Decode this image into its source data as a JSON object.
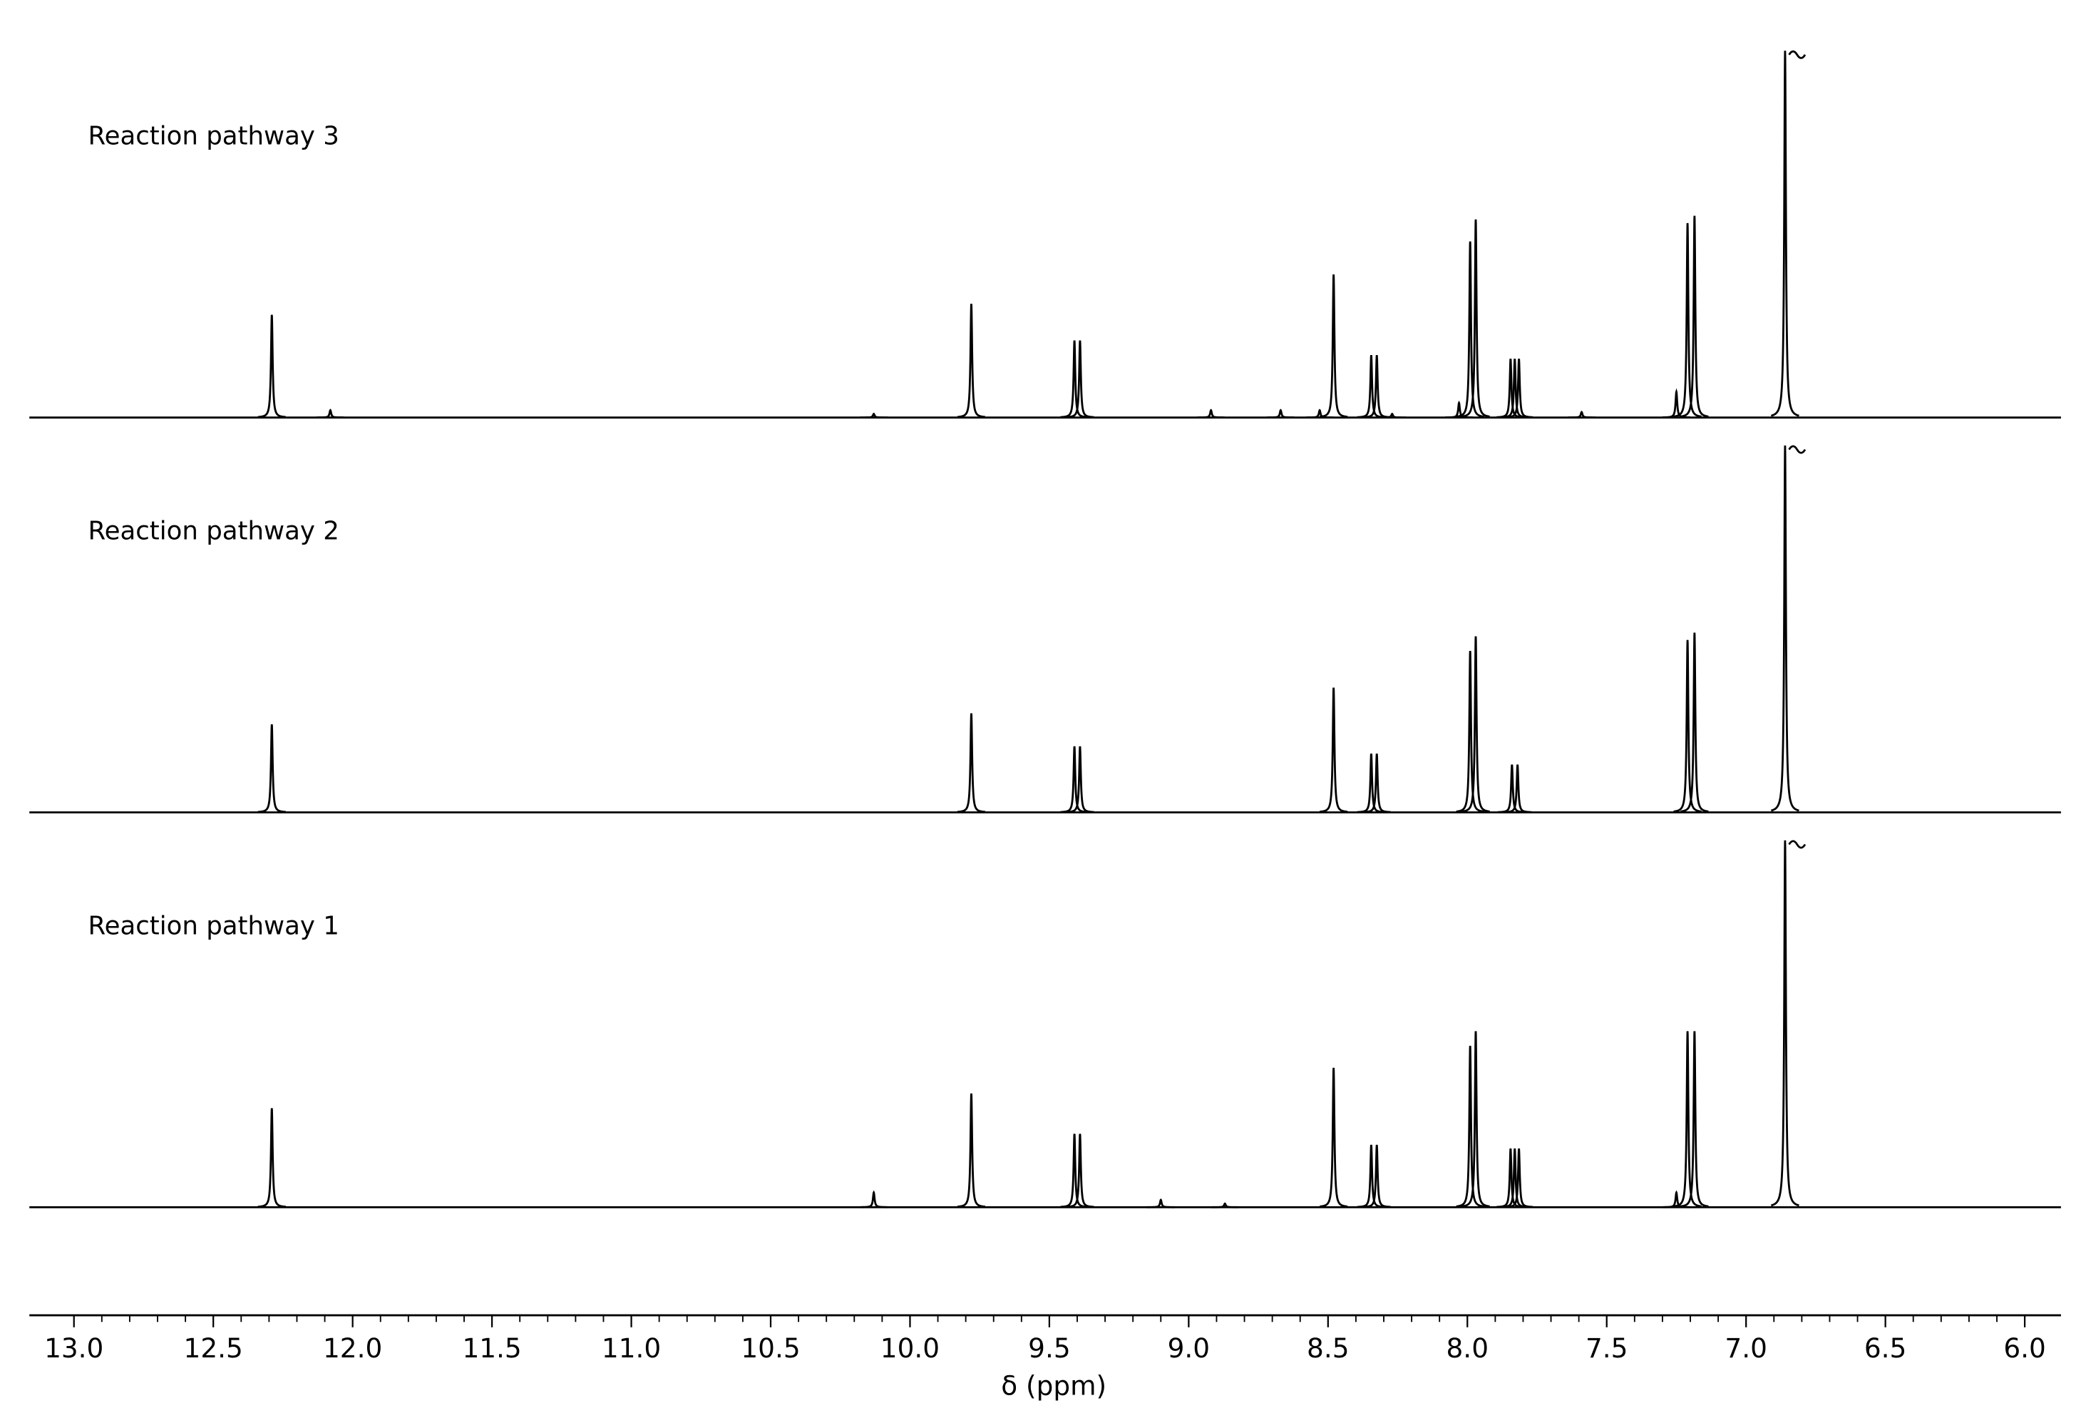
{
  "chart_data": {
    "type": "line",
    "xlabel": "δ (ppm)",
    "xlim": [
      13.16,
      5.87
    ],
    "xticks": [
      {
        "value": 13,
        "label": "13.0"
      },
      12.5,
      {
        "value": 12,
        "label": "12.0"
      },
      11.5,
      {
        "value": 11,
        "label": "11.0"
      },
      10.5,
      {
        "value": 10,
        "label": "10.0"
      },
      9.5,
      {
        "value": 9,
        "label": "9.0"
      },
      8.5,
      {
        "value": 8,
        "label": "8.0"
      },
      7.5,
      {
        "value": 7,
        "label": "7.0"
      },
      6.5,
      {
        "value": 6,
        "label": "6.0"
      }
    ],
    "ylim": [
      0,
      100
    ],
    "color": "#000000",
    "series": [
      {
        "name": "Reaction pathway 3",
        "x": [
          12.29,
          12.08,
          10.13,
          9.78,
          9.41,
          9.39,
          8.92,
          8.67,
          8.53,
          8.48,
          8.345,
          8.325,
          8.27,
          8.03,
          7.99,
          7.97,
          7.845,
          7.83,
          7.815,
          7.59,
          7.25,
          7.21,
          7.185,
          6.86
        ],
        "values": [
          28,
          2,
          1,
          31,
          21,
          21,
          2,
          2,
          2,
          39,
          17,
          17,
          1,
          4,
          48,
          54,
          16,
          16,
          16,
          1.5,
          7,
          53,
          55,
          100
        ]
      },
      {
        "name": "Reaction pathway 2",
        "x": [
          12.29,
          9.78,
          9.41,
          9.39,
          8.48,
          8.345,
          8.325,
          7.99,
          7.97,
          7.84,
          7.82,
          7.21,
          7.185,
          6.86
        ],
        "values": [
          24,
          27,
          18,
          18,
          34,
          16,
          16,
          44,
          48,
          13,
          13,
          47,
          49,
          100
        ]
      },
      {
        "name": "Reaction pathway 1",
        "x": [
          12.29,
          10.13,
          9.78,
          9.41,
          9.39,
          9.1,
          8.87,
          8.48,
          8.345,
          8.325,
          7.99,
          7.97,
          7.845,
          7.83,
          7.815,
          7.25,
          7.21,
          7.185,
          6.86
        ],
        "values": [
          27,
          4,
          31,
          20,
          20,
          2,
          1,
          38,
          17,
          17,
          44,
          48,
          16,
          16,
          16,
          4,
          48,
          48,
          100
        ]
      }
    ]
  }
}
